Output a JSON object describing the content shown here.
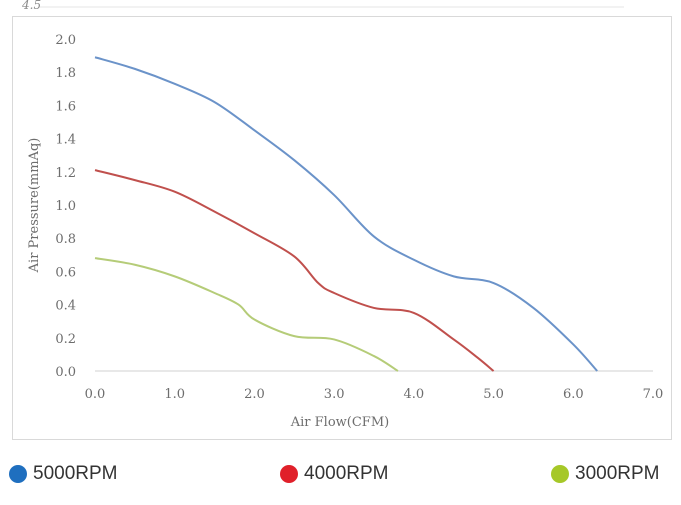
{
  "top_fragment_text": "4.5",
  "chart_data": {
    "type": "line",
    "xlabel": "Air Flow(CFM)",
    "ylabel": "Air Pressure(mmAq)",
    "xlim": [
      0,
      7
    ],
    "ylim": [
      0,
      2
    ],
    "x_ticks": [
      "0.0",
      "1.0",
      "2.0",
      "3.0",
      "4.0",
      "5.0",
      "6.0",
      "7.0"
    ],
    "y_ticks": [
      "0.0",
      "0.2",
      "0.4",
      "0.6",
      "0.8",
      "1.0",
      "1.2",
      "1.4",
      "1.6",
      "1.8",
      "2.0"
    ],
    "grid": false,
    "legend_position": "bottom",
    "series": [
      {
        "name": "5000RPM",
        "color": "#6b93c9",
        "legend_color": "#1f6fbf",
        "points": [
          [
            0.0,
            1.89
          ],
          [
            0.5,
            1.82
          ],
          [
            1.0,
            1.73
          ],
          [
            1.5,
            1.62
          ],
          [
            2.0,
            1.45
          ],
          [
            2.5,
            1.27
          ],
          [
            3.0,
            1.06
          ],
          [
            3.5,
            0.81
          ],
          [
            4.0,
            0.67
          ],
          [
            4.5,
            0.57
          ],
          [
            5.0,
            0.53
          ],
          [
            5.5,
            0.38
          ],
          [
            6.0,
            0.16
          ],
          [
            6.3,
            0.0
          ]
        ]
      },
      {
        "name": "4000RPM",
        "color": "#c0504d",
        "legend_color": "#e0202a",
        "points": [
          [
            0.0,
            1.21
          ],
          [
            0.5,
            1.15
          ],
          [
            1.0,
            1.08
          ],
          [
            1.5,
            0.96
          ],
          [
            2.0,
            0.83
          ],
          [
            2.5,
            0.69
          ],
          [
            2.8,
            0.53
          ],
          [
            3.0,
            0.47
          ],
          [
            3.5,
            0.38
          ],
          [
            4.0,
            0.35
          ],
          [
            4.5,
            0.19
          ],
          [
            4.8,
            0.08
          ],
          [
            5.0,
            0.0
          ]
        ]
      },
      {
        "name": "3000RPM",
        "color": "#b5cc78",
        "legend_color": "#a6c828",
        "points": [
          [
            0.0,
            0.68
          ],
          [
            0.5,
            0.64
          ],
          [
            1.0,
            0.57
          ],
          [
            1.5,
            0.47
          ],
          [
            1.8,
            0.4
          ],
          [
            2.0,
            0.31
          ],
          [
            2.5,
            0.21
          ],
          [
            3.0,
            0.19
          ],
          [
            3.5,
            0.09
          ],
          [
            3.8,
            0.0
          ]
        ]
      }
    ]
  }
}
